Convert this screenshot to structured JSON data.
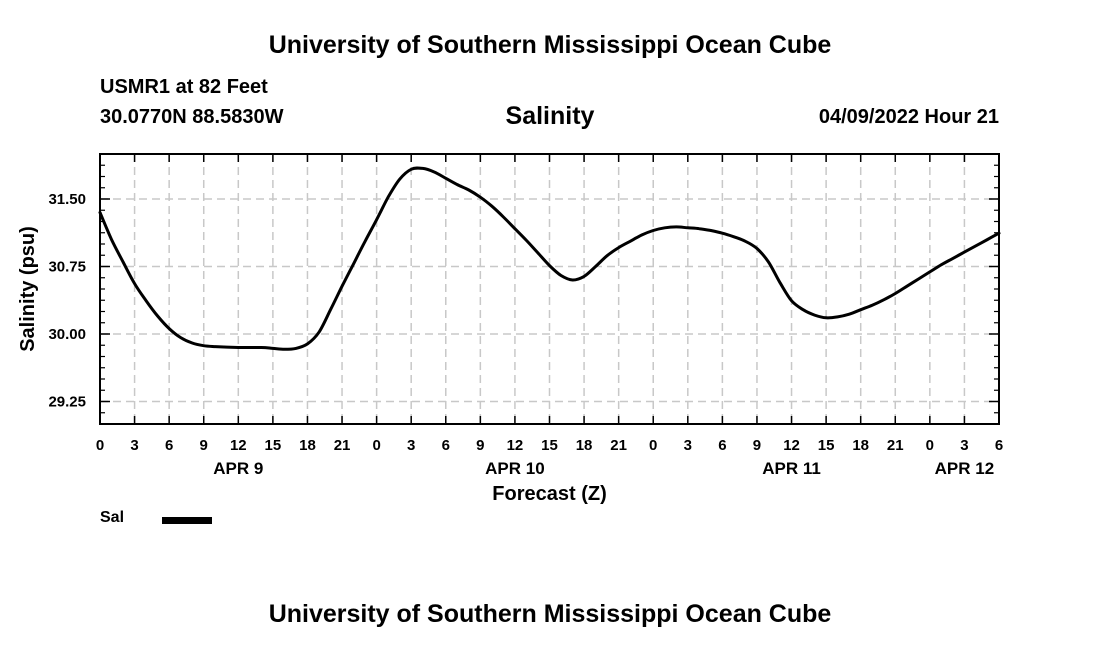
{
  "header": {
    "title": "University of Southern Mississippi Ocean Cube",
    "station": "USMR1 at 82 Feet",
    "coordinates": "30.0770N  88.5830W",
    "datetime": "04/09/2022 Hour 21"
  },
  "footer": {
    "title": "University of Southern Mississippi Ocean Cube"
  },
  "legend": {
    "label": "Sal",
    "color": "#000000"
  },
  "chart_data": {
    "type": "line",
    "title": "Salinity",
    "xlabel": "Forecast (Z)",
    "ylabel": "Salinity (psu)",
    "x_unit": "hours since APR 9 00Z",
    "xlim": [
      0,
      78
    ],
    "ylim": [
      29.0,
      32.0
    ],
    "grid": true,
    "x_ticks": [
      0,
      3,
      6,
      9,
      12,
      15,
      18,
      21,
      24,
      27,
      30,
      33,
      36,
      39,
      42,
      45,
      48,
      51,
      54,
      57,
      60,
      63,
      66,
      69,
      72,
      75,
      78
    ],
    "x_tick_labels": [
      "0",
      "3",
      "6",
      "9",
      "12",
      "15",
      "18",
      "21",
      "0",
      "3",
      "6",
      "9",
      "12",
      "15",
      "18",
      "21",
      "0",
      "3",
      "6",
      "9",
      "12",
      "15",
      "18",
      "21",
      "0",
      "3",
      "6"
    ],
    "day_labels": [
      {
        "x": 12,
        "label": "APR 9"
      },
      {
        "x": 36,
        "label": "APR 10"
      },
      {
        "x": 60,
        "label": "APR 11"
      },
      {
        "x": 75,
        "label": "APR 12"
      }
    ],
    "y_ticks": [
      29.25,
      30.0,
      30.75,
      31.5
    ],
    "y_tick_labels": [
      "29.25",
      "30.00",
      "30.75",
      "31.50"
    ],
    "y_minor_ticks": [
      29.0,
      29.125,
      29.375,
      29.5,
      29.625,
      29.75,
      29.875,
      30.125,
      30.25,
      30.375,
      30.5,
      30.625,
      30.875,
      31.0,
      31.125,
      31.25,
      31.375,
      31.625,
      31.75,
      31.875,
      32.0
    ],
    "series": [
      {
        "name": "Sal",
        "color": "#000000",
        "x": [
          0,
          1,
          2,
          3,
          4,
          5,
          6,
          7,
          8,
          9,
          10,
          12,
          14,
          15,
          16,
          17,
          18,
          19,
          20,
          21,
          22,
          23,
          24,
          25,
          26,
          27,
          28,
          29,
          30,
          31,
          32,
          33,
          34,
          35,
          36,
          37,
          38,
          39,
          40,
          41,
          42,
          43,
          44,
          45,
          46,
          47,
          48,
          49,
          50,
          51,
          52,
          53,
          54,
          55,
          56,
          57,
          58,
          59,
          60,
          61,
          62,
          63,
          64,
          65,
          66,
          67,
          68,
          69,
          70,
          71,
          72,
          73,
          74,
          75,
          76,
          77,
          78
        ],
        "values": [
          31.35,
          31.05,
          30.8,
          30.56,
          30.37,
          30.2,
          30.06,
          29.96,
          29.9,
          29.87,
          29.86,
          29.85,
          29.85,
          29.84,
          29.83,
          29.84,
          29.89,
          30.02,
          30.27,
          30.53,
          30.78,
          31.03,
          31.27,
          31.52,
          31.72,
          31.83,
          31.84,
          31.8,
          31.73,
          31.66,
          31.6,
          31.52,
          31.42,
          31.3,
          31.17,
          31.04,
          30.9,
          30.76,
          30.65,
          30.6,
          30.64,
          30.75,
          30.87,
          30.96,
          31.03,
          31.1,
          31.15,
          31.18,
          31.19,
          31.18,
          31.17,
          31.15,
          31.12,
          31.08,
          31.03,
          30.95,
          30.8,
          30.57,
          30.37,
          30.27,
          30.21,
          30.18,
          30.19,
          30.22,
          30.27,
          30.32,
          30.38,
          30.45,
          30.53,
          30.61,
          30.69,
          30.77,
          30.84,
          30.91,
          30.98,
          31.05,
          31.12
        ]
      }
    ]
  }
}
